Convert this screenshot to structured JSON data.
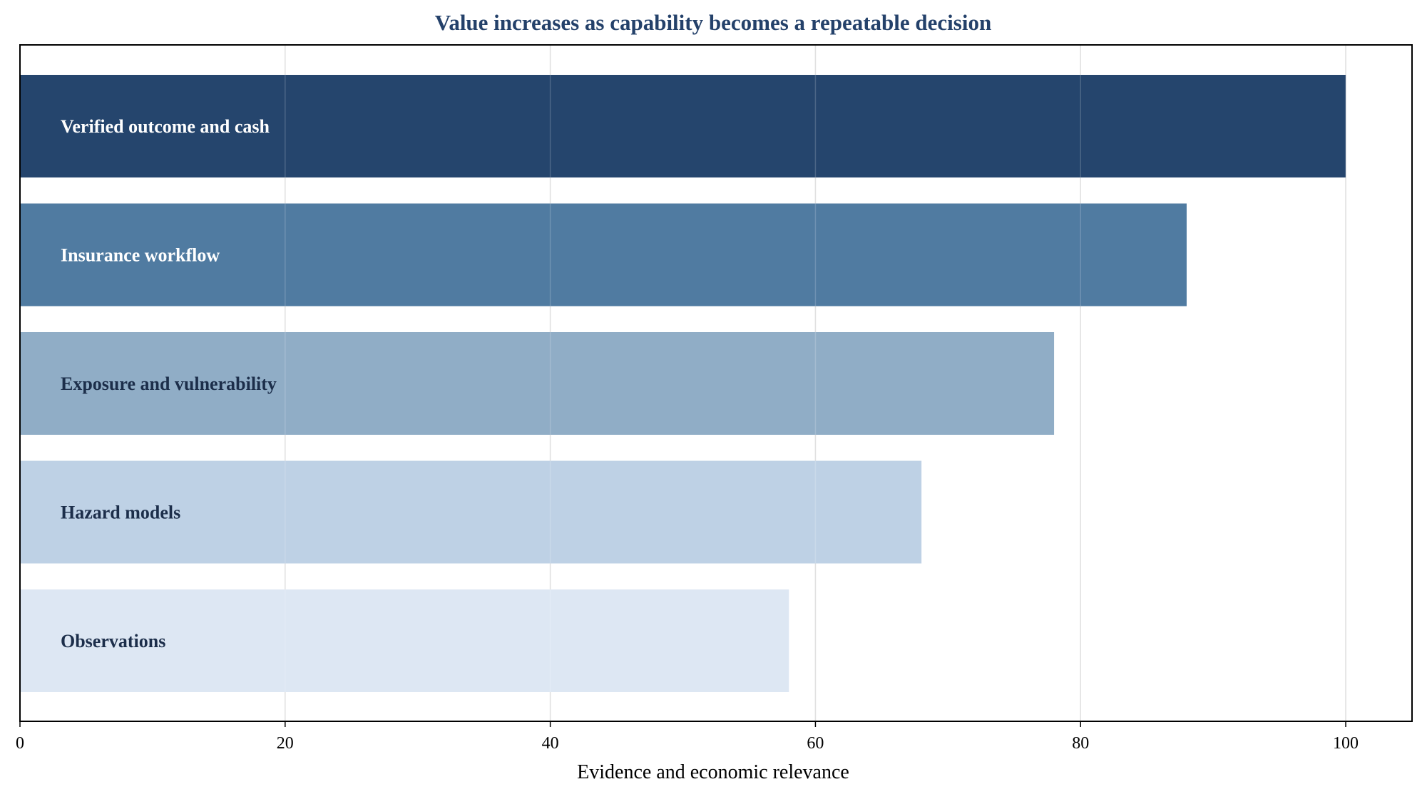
{
  "chart_data": {
    "type": "bar",
    "orientation": "horizontal",
    "title": "Value increases as capability becomes a repeatable decision",
    "xlabel": "Evidence and economic relevance",
    "ylabel": "",
    "xlim": [
      0,
      105
    ],
    "x_ticks": [
      0,
      20,
      40,
      60,
      80,
      100
    ],
    "x_tick_labels": [
      "0",
      "20",
      "40",
      "60",
      "80",
      "100"
    ],
    "grid": "vertical",
    "legend": "none",
    "categories": [
      "Verified outcome and cash",
      "Insurance workflow",
      "Exposure and vulnerability",
      "Hazard models",
      "Observations"
    ],
    "values": [
      100,
      88,
      78,
      68,
      58
    ],
    "colors": [
      "#21416a",
      "#4d789f",
      "#8eabc5",
      "#bdd0e4",
      "#dce7f3"
    ],
    "label_colors": [
      "#ffffff",
      "#ffffff",
      "#1c2e4a",
      "#1c2e4a",
      "#1c2e4a"
    ],
    "title_color": "#24416a"
  }
}
